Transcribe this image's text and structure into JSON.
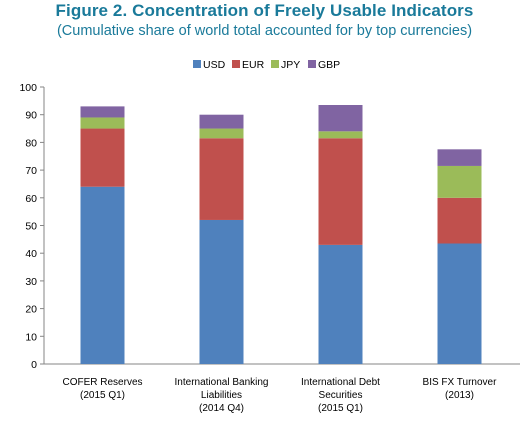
{
  "chart_data": {
    "type": "bar",
    "stacked": true,
    "title": "Figure 2. Concentration of Freely Usable Indicators",
    "subtitle": "(Cumulative share of world total accounted for by top currencies)",
    "xlabel": "",
    "ylabel": "",
    "ylim": [
      0,
      100
    ],
    "yticks": [
      "0",
      "10",
      "20",
      "30",
      "40",
      "50",
      "60",
      "70",
      "80",
      "90",
      "100"
    ],
    "grid": false,
    "legend_position": "top",
    "categories": [
      [
        "COFER Reserves",
        "(2015 Q1)"
      ],
      [
        "International Banking",
        "Liabilities",
        "(2014 Q4)"
      ],
      [
        "International Debt",
        "Securities",
        "(2015 Q1)"
      ],
      [
        "BIS FX Turnover",
        "(2013)"
      ]
    ],
    "series": [
      {
        "name": "USD",
        "color": "#4f81bd",
        "values": [
          64,
          52,
          43,
          43.5
        ]
      },
      {
        "name": "EUR",
        "color": "#c0504d",
        "values": [
          21,
          29.5,
          38.5,
          16.5
        ]
      },
      {
        "name": "JPY",
        "color": "#9bbb59",
        "values": [
          4,
          3.5,
          2.5,
          11.5
        ]
      },
      {
        "name": "GBP",
        "color": "#8064a2",
        "values": [
          4,
          5,
          9.5,
          6
        ]
      }
    ]
  }
}
